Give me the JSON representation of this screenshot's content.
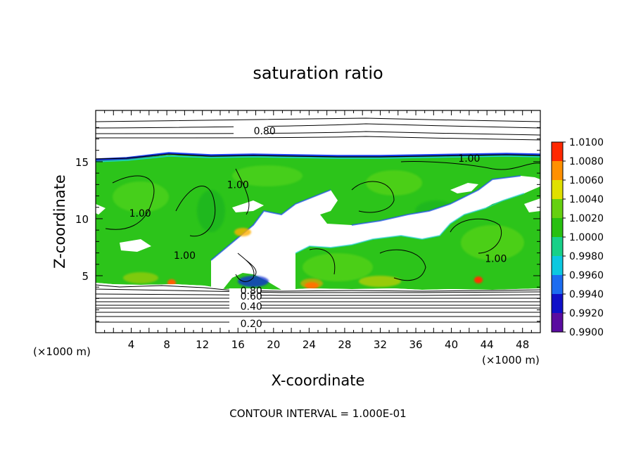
{
  "chart_data": {
    "type": "heatmap",
    "title": "saturation ratio",
    "xlabel": "X-coordinate",
    "ylabel": "Z-coordinate",
    "x_unit_label": "(×1000 m)",
    "y_unit_label": "(×1000 m)",
    "footnote": "CONTOUR INTERVAL = 1.000E-01",
    "xlim": [
      0,
      50
    ],
    "ylim": [
      0,
      19.5
    ],
    "x_ticks": [
      4,
      8,
      12,
      16,
      20,
      24,
      28,
      32,
      36,
      40,
      44,
      48
    ],
    "y_ticks": [
      5,
      10,
      15
    ],
    "colorbar": {
      "levels": [
        0.99,
        0.992,
        0.994,
        0.996,
        0.998,
        1.0,
        1.002,
        1.004,
        1.006,
        1.008,
        1.01
      ],
      "labels": [
        "0.9900",
        "0.9920",
        "0.9940",
        "0.9960",
        "0.9980",
        "1.0000",
        "1.0020",
        "1.0040",
        "1.0060",
        "1.0080",
        "1.0100"
      ],
      "colors": [
        "#5a0ca0",
        "#1010c8",
        "#1c6cf0",
        "#0cc8e0",
        "#18d088",
        "#28c010",
        "#66d010",
        "#e0e000",
        "#ff9000",
        "#ff2800",
        "#ff7070"
      ]
    },
    "contour_labels": [
      {
        "text": "0.80",
        "x": 19.0,
        "z": 17.7
      },
      {
        "text": "1.00",
        "x": 42.0,
        "z": 15.3
      },
      {
        "text": "1.00",
        "x": 16.0,
        "z": 13.0
      },
      {
        "text": "1.00",
        "x": 5.0,
        "z": 10.5
      },
      {
        "text": "1.00",
        "x": 10.0,
        "z": 6.8
      },
      {
        "text": "1.00",
        "x": 45.0,
        "z": 6.5
      },
      {
        "text": "0.80",
        "x": 17.5,
        "z": 3.7
      },
      {
        "text": "0.60",
        "x": 17.5,
        "z": 3.2
      },
      {
        "text": "0.40",
        "x": 17.5,
        "z": 2.3
      },
      {
        "text": "0.20",
        "x": 17.5,
        "z": 0.8
      }
    ],
    "regions": {
      "supersaturated_layer_z": [
        4.3,
        15.5
      ],
      "tropopause_z": 15.5,
      "clear_band_bottom_z": 4.2
    }
  }
}
